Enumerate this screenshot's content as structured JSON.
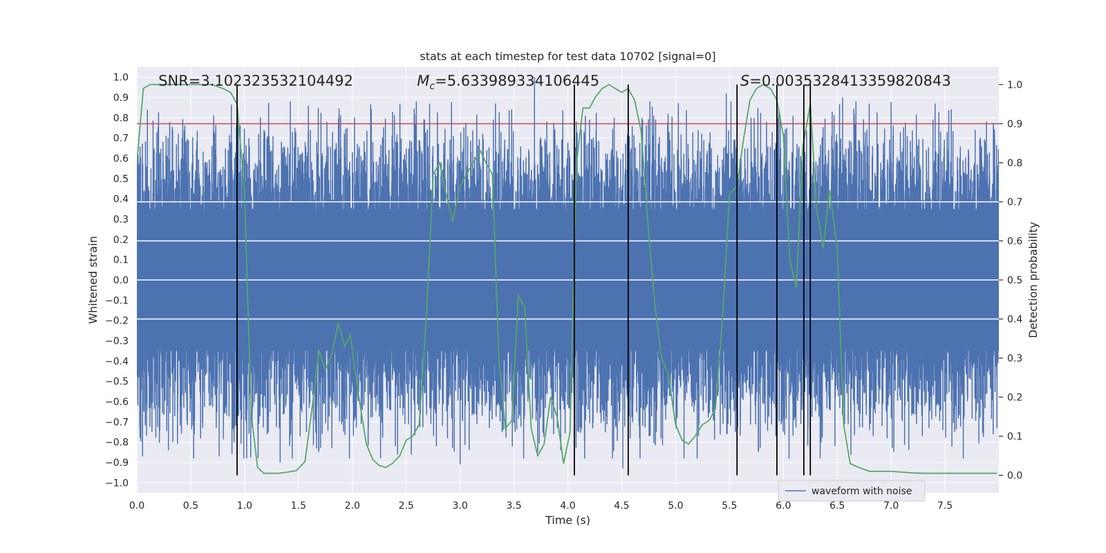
{
  "chart_data": {
    "type": "line",
    "title": "stats at each timestep for test data 10702 [signal=0]",
    "xlabel": "Time (s)",
    "ylabel": "Whitened strain",
    "y2label": "Detection probability",
    "xlim": [
      0,
      8
    ],
    "ylim": [
      -1.05,
      1.05
    ],
    "y2lim": [
      -0.045,
      1.045
    ],
    "x_ticks": [
      0.0,
      0.5,
      1.0,
      1.5,
      2.0,
      2.5,
      3.0,
      3.5,
      4.0,
      4.5,
      5.0,
      5.5,
      6.0,
      6.5,
      7.0,
      7.5
    ],
    "x_tick_labels": [
      "0.0",
      "0.5",
      "1.0",
      "1.5",
      "2.0",
      "2.5",
      "3.0",
      "3.5",
      "4.0",
      "4.5",
      "5.0",
      "5.5",
      "6.0",
      "6.5",
      "7.0",
      "7.5"
    ],
    "y_ticks": [
      -1.0,
      -0.9,
      -0.8,
      -0.7,
      -0.6,
      -0.5,
      -0.4,
      -0.3,
      -0.2,
      -0.1,
      0.0,
      0.1,
      0.2,
      0.3,
      0.4,
      0.5,
      0.6,
      0.7,
      0.8,
      0.9,
      1.0
    ],
    "y_tick_labels": [
      "−1.0",
      "−0.9",
      "−0.8",
      "−0.7",
      "−0.6",
      "−0.5",
      "−0.4",
      "−0.3",
      "−0.2",
      "−0.1",
      "0.0",
      "0.1",
      "0.2",
      "0.3",
      "0.4",
      "0.5",
      "0.6",
      "0.7",
      "0.8",
      "0.9",
      "1.0"
    ],
    "y2_ticks": [
      0.0,
      0.1,
      0.2,
      0.3,
      0.4,
      0.5,
      0.6,
      0.7,
      0.8,
      0.9,
      1.0
    ],
    "y2_tick_labels": [
      "0.0",
      "0.1",
      "0.2",
      "0.3",
      "0.4",
      "0.5",
      "0.6",
      "0.7",
      "0.8",
      "0.9",
      "1.0"
    ],
    "grid": true,
    "annotations": {
      "snr": "SNR=3.102323532104492",
      "mc_symbol": "M",
      "mc_sub": "c",
      "mc_value": "=5.633989334106445",
      "s_symbol": "S",
      "s_value": "=0.0035328413359820843"
    },
    "legend": {
      "placement": "lower-right",
      "label": "waveform with noise"
    },
    "threshold": {
      "y2": 0.9,
      "color": "#c44e52"
    },
    "detection_boundaries": [
      0.93,
      4.06,
      4.56,
      5.57,
      5.94,
      6.19,
      6.25
    ],
    "boundary_range_y2": [
      0.0,
      1.0
    ],
    "waveform_envelope": {
      "core_amplitude": 0.35,
      "peak_amplitude": 1.0,
      "duration_s": 8.0,
      "sample_rate_hz": 512
    },
    "waveform_peaks": [
      {
        "x": 0.02,
        "y": 0.57
      },
      {
        "x": 0.03,
        "y": -0.78
      },
      {
        "x": 0.14,
        "y": -0.75
      },
      {
        "x": 0.29,
        "y": 0.7
      },
      {
        "x": 0.42,
        "y": 0.7
      },
      {
        "x": 0.52,
        "y": -0.7
      },
      {
        "x": 0.88,
        "y": 0.68
      },
      {
        "x": 1.13,
        "y": 0.72
      },
      {
        "x": 1.18,
        "y": 0.74
      },
      {
        "x": 1.33,
        "y": -0.9
      },
      {
        "x": 1.59,
        "y": 0.73
      },
      {
        "x": 1.72,
        "y": -0.76
      },
      {
        "x": 1.81,
        "y": -0.83
      },
      {
        "x": 2.02,
        "y": 0.8
      },
      {
        "x": 2.19,
        "y": 0.68
      },
      {
        "x": 2.42,
        "y": -0.86
      },
      {
        "x": 2.67,
        "y": 0.79
      },
      {
        "x": 2.78,
        "y": -0.82
      },
      {
        "x": 3.0,
        "y": -0.91
      },
      {
        "x": 3.21,
        "y": 0.72
      },
      {
        "x": 3.39,
        "y": -0.75
      },
      {
        "x": 3.69,
        "y": 1.0
      },
      {
        "x": 3.72,
        "y": -0.85
      },
      {
        "x": 4.15,
        "y": 0.73
      },
      {
        "x": 4.43,
        "y": 0.8
      },
      {
        "x": 4.51,
        "y": -0.93
      },
      {
        "x": 4.67,
        "y": -0.88
      },
      {
        "x": 4.93,
        "y": 0.82
      },
      {
        "x": 5.2,
        "y": -0.88
      },
      {
        "x": 5.47,
        "y": 0.92
      },
      {
        "x": 5.7,
        "y": 0.8
      },
      {
        "x": 5.93,
        "y": -0.77
      },
      {
        "x": 6.09,
        "y": 0.81
      },
      {
        "x": 6.35,
        "y": -0.8
      },
      {
        "x": 6.55,
        "y": 0.9
      },
      {
        "x": 6.8,
        "y": -0.74
      },
      {
        "x": 7.02,
        "y": 0.76
      },
      {
        "x": 7.29,
        "y": -0.77
      },
      {
        "x": 7.52,
        "y": 0.73
      },
      {
        "x": 7.78,
        "y": 0.74
      },
      {
        "x": 7.95,
        "y": 0.71
      }
    ],
    "series": [
      {
        "name": "",
        "axis": "right",
        "color": "#55a868",
        "x": [
          0.0,
          0.06,
          0.12,
          0.2,
          0.3,
          0.4,
          0.5,
          0.6,
          0.7,
          0.8,
          0.87,
          0.93,
          1.0,
          1.06,
          1.12,
          1.18,
          1.25,
          1.32,
          1.4,
          1.48,
          1.56,
          1.63,
          1.69,
          1.75,
          1.81,
          1.87,
          1.93,
          1.98,
          2.06,
          2.13,
          2.19,
          2.25,
          2.31,
          2.37,
          2.44,
          2.5,
          2.56,
          2.62,
          2.69,
          2.75,
          2.81,
          2.87,
          2.93,
          3.0,
          3.06,
          3.12,
          3.19,
          3.24,
          3.3,
          3.36,
          3.42,
          3.48,
          3.54,
          3.6,
          3.66,
          3.72,
          3.78,
          3.84,
          3.9,
          3.96,
          4.02,
          4.08,
          4.14,
          4.2,
          4.26,
          4.32,
          4.38,
          4.44,
          4.5,
          4.56,
          4.62,
          4.68,
          4.75,
          4.81,
          4.87,
          4.93,
          5.0,
          5.06,
          5.12,
          5.18,
          5.25,
          5.31,
          5.37,
          5.44,
          5.5,
          5.57,
          5.63,
          5.69,
          5.75,
          5.81,
          5.88,
          5.94,
          6.0,
          6.06,
          6.12,
          6.18,
          6.25,
          6.31,
          6.37,
          6.43,
          6.5,
          6.56,
          6.62,
          6.7,
          6.8,
          6.9,
          7.0,
          7.1,
          7.2,
          7.3,
          7.4,
          7.5,
          7.6,
          7.7,
          7.8,
          7.9,
          7.98
        ],
        "y": [
          0.8,
          0.99,
          1.0,
          1.0,
          1.0,
          1.0,
          1.0,
          1.0,
          1.0,
          0.99,
          0.98,
          0.95,
          0.72,
          0.16,
          0.02,
          0.005,
          0.005,
          0.005,
          0.008,
          0.012,
          0.035,
          0.18,
          0.32,
          0.27,
          0.31,
          0.39,
          0.33,
          0.36,
          0.2,
          0.08,
          0.04,
          0.025,
          0.02,
          0.03,
          0.05,
          0.09,
          0.1,
          0.13,
          0.42,
          0.77,
          0.8,
          0.72,
          0.65,
          0.74,
          0.77,
          0.8,
          0.83,
          0.8,
          0.77,
          0.3,
          0.12,
          0.14,
          0.46,
          0.43,
          0.12,
          0.05,
          0.08,
          0.2,
          0.15,
          0.03,
          0.11,
          0.8,
          0.94,
          0.94,
          0.97,
          0.99,
          1.0,
          0.99,
          0.98,
          0.99,
          0.96,
          0.88,
          0.62,
          0.43,
          0.3,
          0.26,
          0.13,
          0.09,
          0.08,
          0.1,
          0.13,
          0.14,
          0.17,
          0.42,
          0.72,
          0.74,
          0.86,
          0.96,
          0.99,
          1.0,
          0.99,
          0.96,
          0.87,
          0.55,
          0.48,
          0.84,
          0.95,
          0.68,
          0.58,
          0.73,
          0.58,
          0.13,
          0.03,
          0.02,
          0.01,
          0.01,
          0.01,
          0.008,
          0.006,
          0.005,
          0.005,
          0.005,
          0.005,
          0.005,
          0.005,
          0.005,
          0.005
        ]
      },
      {
        "name": "waveform with noise",
        "axis": "left",
        "color": "#4c72b0"
      }
    ]
  }
}
